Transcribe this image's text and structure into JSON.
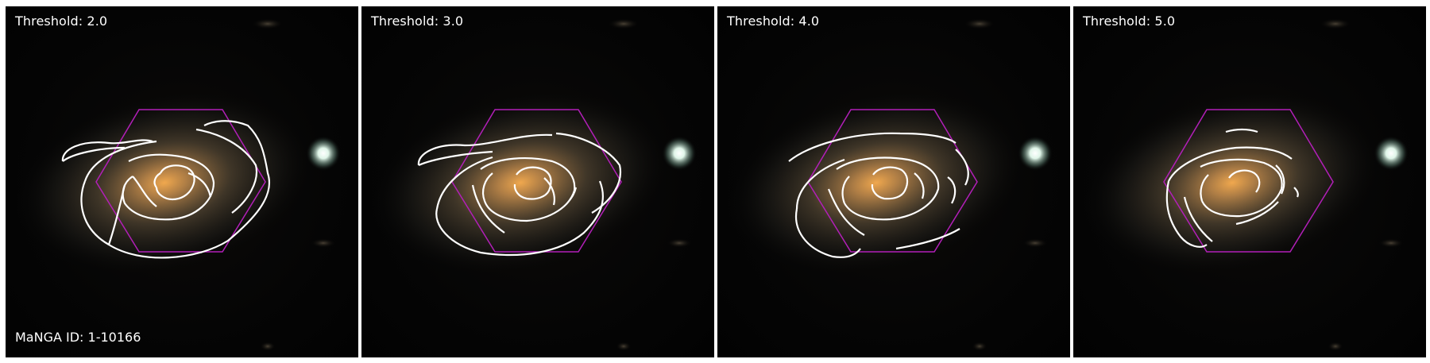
{
  "panels": [
    {
      "label": "Threshold: 2.0",
      "threshold": 2.0
    },
    {
      "label": "Threshold: 3.0",
      "threshold": 3.0
    },
    {
      "label": "Threshold: 4.0",
      "threshold": 4.0
    },
    {
      "label": "Threshold: 5.0",
      "threshold": 5.0
    }
  ],
  "object_id": "MaNGA ID: 1-10166",
  "colors": {
    "contour": "#ffffff",
    "hexagon": "#b21fb8",
    "background": "#050505",
    "galaxy_core": "#e9a24a",
    "star": "#e8fff4"
  }
}
